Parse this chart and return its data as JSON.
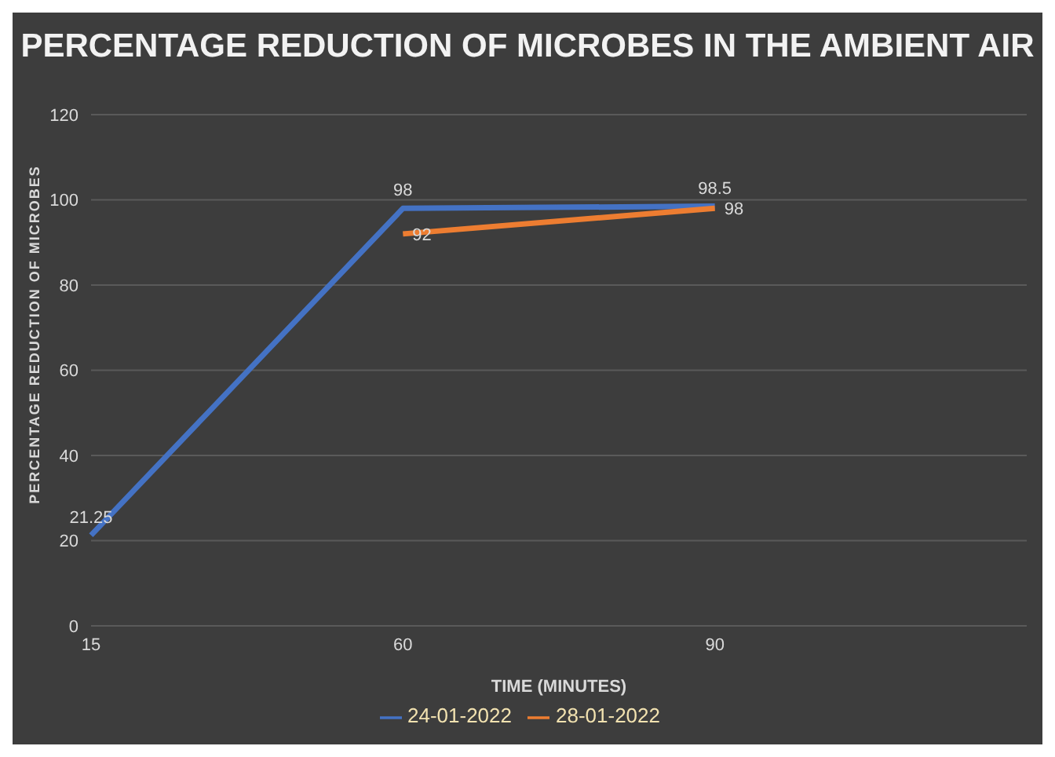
{
  "chart_data": {
    "type": "line",
    "title": "PERCENTAGE REDUCTION OF  MICROBES IN THE AMBIENT AIR",
    "xlabel": "TIME (MINUTES)",
    "ylabel": "PERCENTAGE REDUCTION OF MICROBES",
    "categories": [
      "15",
      "60",
      "90",
      null
    ],
    "series": [
      {
        "name": "24-01-2022",
        "color": "#4472c4",
        "values": [
          21.25,
          98,
          98.5,
          null
        ]
      },
      {
        "name": "28-01-2022",
        "color": "#ed7d31",
        "values": [
          null,
          92,
          98,
          null
        ]
      }
    ],
    "ylim": [
      0,
      120
    ],
    "yticks": [
      0,
      20,
      40,
      60,
      80,
      100,
      120
    ],
    "grid": "y",
    "legend": "bottom",
    "marker": "none",
    "line_style": "solid",
    "data_labels": true
  }
}
